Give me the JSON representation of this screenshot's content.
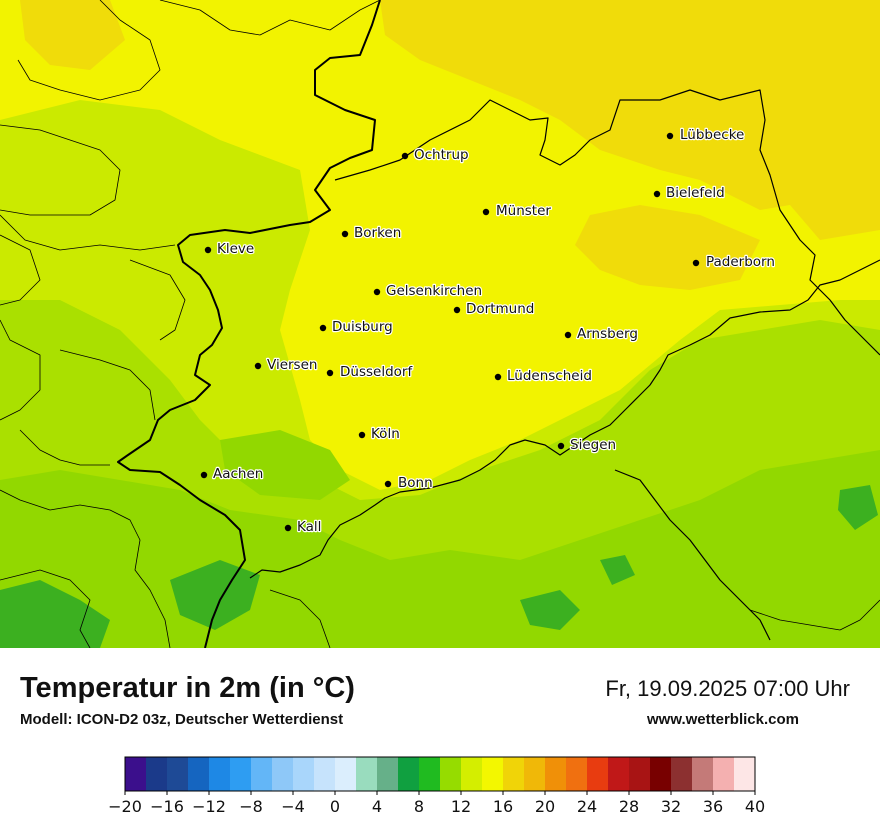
{
  "header": {
    "title": "Temperatur in 2m (in °C)",
    "model": "Modell: ICON-D2 03z, Deutscher Wetterdienst",
    "datetime": "Fr, 19.09.2025 07:00 Uhr",
    "website": "www.wetterblick.com"
  },
  "cities": [
    {
      "name": "Lübbecke"
    },
    {
      "name": "Ochtrup"
    },
    {
      "name": "Bielefeld"
    },
    {
      "name": "Münster"
    },
    {
      "name": "Borken"
    },
    {
      "name": "Kleve"
    },
    {
      "name": "Paderborn"
    },
    {
      "name": "Gelsenkirchen"
    },
    {
      "name": "Dortmund"
    },
    {
      "name": "Duisburg"
    },
    {
      "name": "Arnsberg"
    },
    {
      "name": "Viersen"
    },
    {
      "name": "Düsseldorf"
    },
    {
      "name": "Lüdenscheid"
    },
    {
      "name": "Köln"
    },
    {
      "name": "Siegen"
    },
    {
      "name": "Aachen"
    },
    {
      "name": "Bonn"
    },
    {
      "name": "Kall"
    }
  ],
  "legend": {
    "tick_labels": [
      "−20",
      "−16",
      "−12",
      "−8",
      "−4",
      "0",
      "4",
      "8",
      "12",
      "16",
      "20",
      "24",
      "28",
      "32",
      "36",
      "40"
    ],
    "colors": [
      "#3b0f8c",
      "#1b3a8a",
      "#1e4a96",
      "#1565c0",
      "#1e88e5",
      "#2e9df2",
      "#63b6f7",
      "#8ec8f8",
      "#a9d6fb",
      "#c6e3fc",
      "#dbeefd",
      "#99dcbe",
      "#66b089",
      "#10a040",
      "#20bb20",
      "#96dc00",
      "#d4ee00",
      "#f3f700",
      "#f0d408",
      "#f0b808",
      "#f09008",
      "#f07010",
      "#e83c10",
      "#c01818",
      "#a81414",
      "#780000",
      "#8c3030",
      "#c47a78",
      "#f4b0b0",
      "#fde6e6"
    ]
  },
  "map_colors": {
    "yellow": "#f2f300",
    "orange": "#f0dc0a",
    "lime": "#cbea00",
    "green_light": "#aae000",
    "green": "#92d800",
    "green_dark": "#3cb020"
  }
}
